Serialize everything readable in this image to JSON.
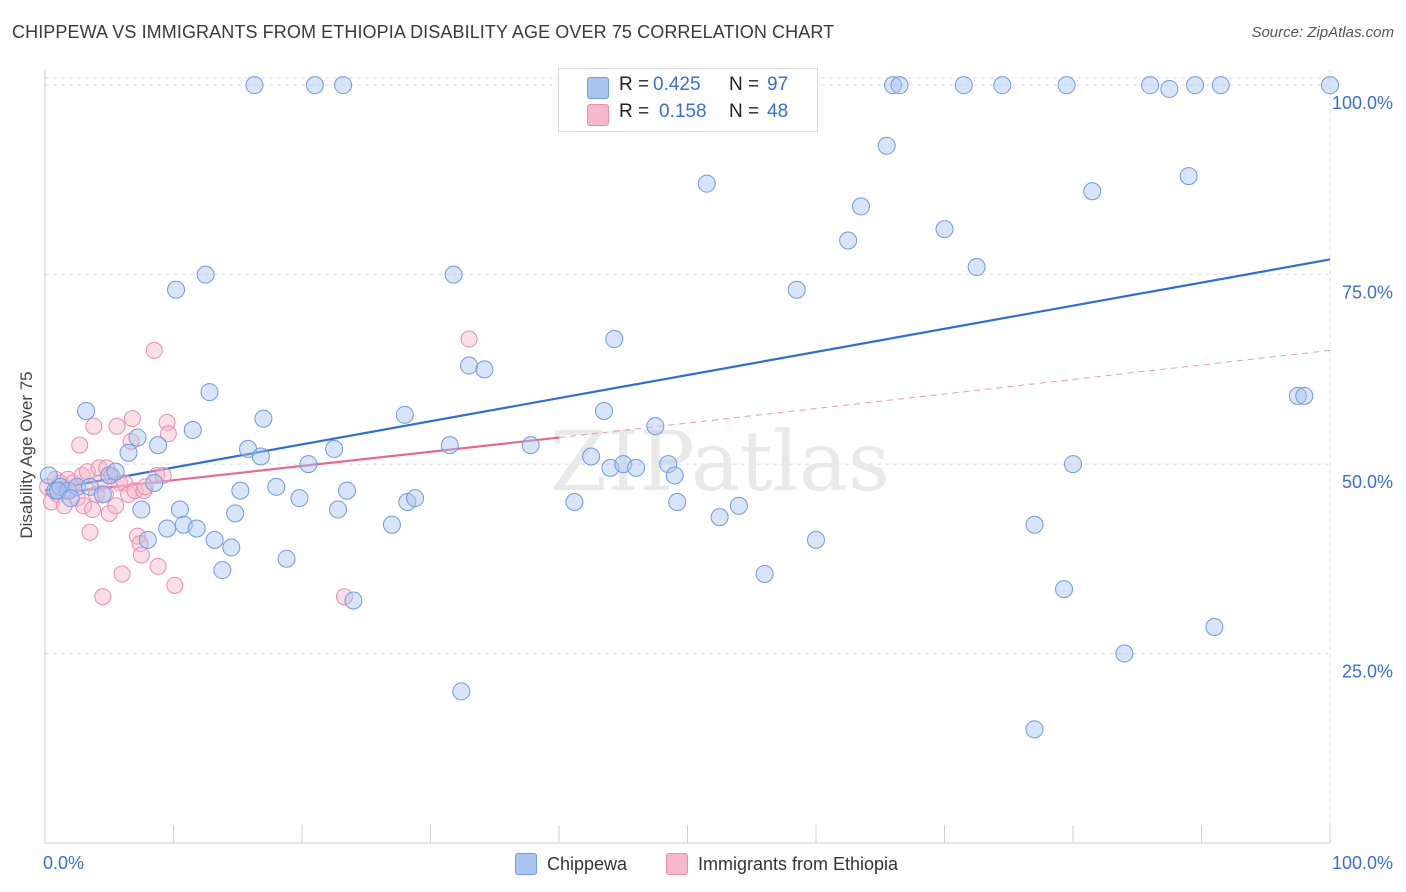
{
  "title": "CHIPPEWA VS IMMIGRANTS FROM ETHIOPIA DISABILITY AGE OVER 75 CORRELATION CHART",
  "source": "Source: ZipAtlas.com",
  "watermark": "ZIPatlas",
  "legend": {
    "chippewa": {
      "r_label": "R =",
      "r_value": "0.425",
      "n_label": "N =",
      "n_value": "97"
    },
    "ethiopia": {
      "r_label": "R =",
      "r_value": "0.158",
      "n_label": "N =",
      "n_value": "48"
    }
  },
  "bottom_legend": {
    "chippewa": "Chippewa",
    "ethiopia": "Immigrants from Ethiopia"
  },
  "colors": {
    "chippewa_fill": "#a9c4ee",
    "chippewa_stroke": "#6f9be0",
    "chippewa_line": "#2f6fcf",
    "ethiopia_fill": "#f6b8cb",
    "ethiopia_stroke": "#ea8eab",
    "ethiopia_line": "#e06b95",
    "tick_label": "#3a6fd0",
    "grid": "#dedede"
  },
  "chart_data": {
    "type": "scatter",
    "title": "CHIPPEWA VS IMMIGRANTS FROM ETHIOPIA DISABILITY AGE OVER 75 CORRELATION CHART",
    "xlabel": "",
    "ylabel": "Disability Age Over 75",
    "xlim": [
      0,
      100
    ],
    "ylim": [
      0,
      102
    ],
    "x_tick_labels": [
      "0.0%",
      "100.0%"
    ],
    "y_tick_labels": [
      "25.0%",
      "50.0%",
      "75.0%",
      "100.0%"
    ],
    "y_ticks": [
      25,
      50,
      75,
      100
    ],
    "grid": true,
    "series": [
      {
        "name": "Chippewa",
        "points": [
          [
            0.3,
            48.5
          ],
          [
            0.8,
            46.5
          ],
          [
            1.2,
            47
          ],
          [
            1.8,
            46.5
          ],
          [
            2.5,
            47
          ],
          [
            3.2,
            57
          ],
          [
            3.5,
            47
          ],
          [
            4.5,
            46
          ],
          [
            5,
            48.5
          ],
          [
            5.5,
            49
          ],
          [
            6.5,
            51.5
          ],
          [
            7.2,
            53.5
          ],
          [
            7.5,
            44
          ],
          [
            8,
            40
          ],
          [
            8.5,
            47.5
          ],
          [
            8.8,
            52.5
          ],
          [
            9.5,
            41.5
          ],
          [
            10.2,
            73
          ],
          [
            10.5,
            44
          ],
          [
            10.8,
            42
          ],
          [
            11.5,
            54.5
          ],
          [
            11.8,
            41.5
          ],
          [
            12.5,
            75
          ],
          [
            12.8,
            59.5
          ],
          [
            13.2,
            40
          ],
          [
            13.8,
            36
          ],
          [
            14.5,
            39
          ],
          [
            14.8,
            43.5
          ],
          [
            15.2,
            46.5
          ],
          [
            15.8,
            52
          ],
          [
            16.3,
            100
          ],
          [
            16.8,
            51
          ],
          [
            17,
            56
          ],
          [
            18,
            47
          ],
          [
            18.8,
            37.5
          ],
          [
            19.8,
            45.5
          ],
          [
            20.5,
            50
          ],
          [
            21,
            100
          ],
          [
            22.5,
            52
          ],
          [
            22.8,
            44
          ],
          [
            23.2,
            100
          ],
          [
            23.5,
            46.5
          ],
          [
            24,
            32
          ],
          [
            27,
            42
          ],
          [
            28,
            56.5
          ],
          [
            28.2,
            45
          ],
          [
            28.8,
            45.5
          ],
          [
            31.5,
            52.5
          ],
          [
            31.8,
            75
          ],
          [
            32.4,
            20
          ],
          [
            33,
            63
          ],
          [
            34.2,
            62.5
          ],
          [
            37.8,
            52.5
          ],
          [
            41.2,
            45
          ],
          [
            42.5,
            51
          ],
          [
            43.5,
            57
          ],
          [
            44,
            49.5
          ],
          [
            44.3,
            66.5
          ],
          [
            45,
            50
          ],
          [
            46,
            49.5
          ],
          [
            47.5,
            55
          ],
          [
            48.5,
            50
          ],
          [
            49,
            48.5
          ],
          [
            49.2,
            45
          ],
          [
            51.5,
            87
          ],
          [
            52.5,
            43
          ],
          [
            54,
            44.5
          ],
          [
            56,
            35.5
          ],
          [
            58.5,
            73
          ],
          [
            60,
            40
          ],
          [
            62.5,
            79.5
          ],
          [
            63.5,
            84
          ],
          [
            65.5,
            92
          ],
          [
            66,
            100
          ],
          [
            66.5,
            100
          ],
          [
            70,
            81
          ],
          [
            71.5,
            100
          ],
          [
            72.5,
            76
          ],
          [
            74.5,
            100
          ],
          [
            77,
            15
          ],
          [
            77,
            42
          ],
          [
            79.3,
            33.5
          ],
          [
            79.5,
            100
          ],
          [
            80,
            50
          ],
          [
            81.5,
            86
          ],
          [
            84,
            25
          ],
          [
            86,
            100
          ],
          [
            87.5,
            99.5
          ],
          [
            89,
            88
          ],
          [
            89.5,
            100
          ],
          [
            91,
            28.5
          ],
          [
            91.5,
            100
          ],
          [
            97.5,
            59
          ],
          [
            98,
            59
          ],
          [
            100,
            100
          ],
          [
            1,
            46.5
          ],
          [
            2,
            45.5
          ]
        ]
      },
      {
        "name": "Immigrants from Ethiopia",
        "points": [
          [
            0.2,
            47
          ],
          [
            0.5,
            45
          ],
          [
            0.8,
            48
          ],
          [
            1,
            46
          ],
          [
            1.2,
            47.5
          ],
          [
            1.5,
            44.5
          ],
          [
            1.8,
            48
          ],
          [
            2,
            46.5
          ],
          [
            2.2,
            47.5
          ],
          [
            2.5,
            45.5
          ],
          [
            2.7,
            52.5
          ],
          [
            2.9,
            48.5
          ],
          [
            3,
            44.5
          ],
          [
            3.3,
            49
          ],
          [
            3.5,
            41
          ],
          [
            3.7,
            44
          ],
          [
            3.8,
            55
          ],
          [
            4,
            46
          ],
          [
            4.2,
            49.5
          ],
          [
            4.3,
            47.5
          ],
          [
            4.5,
            32.5
          ],
          [
            4.7,
            46
          ],
          [
            4.8,
            49.5
          ],
          [
            5,
            43.5
          ],
          [
            5.2,
            48.5
          ],
          [
            5.5,
            44.5
          ],
          [
            5.6,
            55
          ],
          [
            5.8,
            47.5
          ],
          [
            6,
            35.5
          ],
          [
            6.2,
            47.5
          ],
          [
            6.5,
            46
          ],
          [
            6.7,
            53
          ],
          [
            6.8,
            56
          ],
          [
            7,
            46.5
          ],
          [
            7.2,
            40.5
          ],
          [
            7.4,
            39.5
          ],
          [
            7.5,
            38
          ],
          [
            7.7,
            46.5
          ],
          [
            7.8,
            47
          ],
          [
            8.5,
            65
          ],
          [
            8.7,
            48.5
          ],
          [
            8.8,
            36.5
          ],
          [
            9.2,
            48.5
          ],
          [
            9.5,
            55.5
          ],
          [
            9.6,
            54
          ],
          [
            10.1,
            34
          ],
          [
            23.3,
            32.5
          ],
          [
            33,
            66.5
          ]
        ]
      }
    ],
    "trend_lines": [
      {
        "name": "Chippewa",
        "x": [
          0,
          100
        ],
        "y": [
          46.5,
          77
        ],
        "style": "solid"
      },
      {
        "name": "Immigrants from Ethiopia",
        "x": [
          0,
          40
        ],
        "y": [
          46,
          53.5
        ],
        "style": "solid"
      },
      {
        "name": "Immigrants from Ethiopia",
        "x": [
          40,
          100
        ],
        "y": [
          53.5,
          65
        ],
        "style": "dashed"
      }
    ]
  }
}
